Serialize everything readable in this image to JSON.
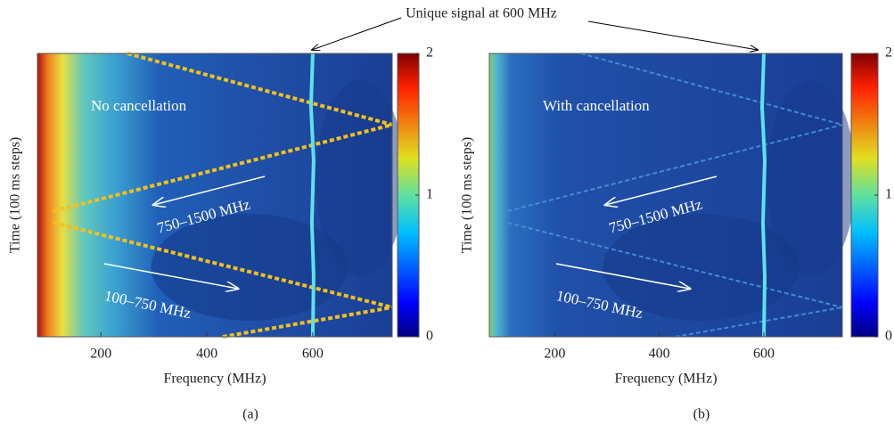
{
  "figure_annotation": "Unique signal at 600 MHz",
  "chart_data": [
    {
      "type": "heatmap",
      "panel": "(a)",
      "xlabel": "Frequency (MHz)",
      "ylabel": "Time (100 ms steps)",
      "xlim": [
        80,
        750
      ],
      "xticks": [
        200,
        400,
        600
      ],
      "colormap": "jet",
      "clim": [
        0,
        2
      ],
      "cticks": [
        0,
        1,
        2
      ],
      "annotations": [
        "No cancellation",
        "750–1500 MHz",
        "100–750 MHz"
      ]
    },
    {
      "type": "heatmap",
      "panel": "(b)",
      "xlabel": "Frequency (MHz)",
      "ylabel": "Time (100 ms steps)",
      "xlim": [
        75,
        750
      ],
      "xticks": [
        200,
        400,
        600
      ],
      "colormap": "jet",
      "clim": [
        0,
        2
      ],
      "cticks": [
        0,
        1,
        2
      ],
      "annotations": [
        "With cancellation",
        "750–1500 MHz",
        "100–750 MHz"
      ]
    }
  ]
}
